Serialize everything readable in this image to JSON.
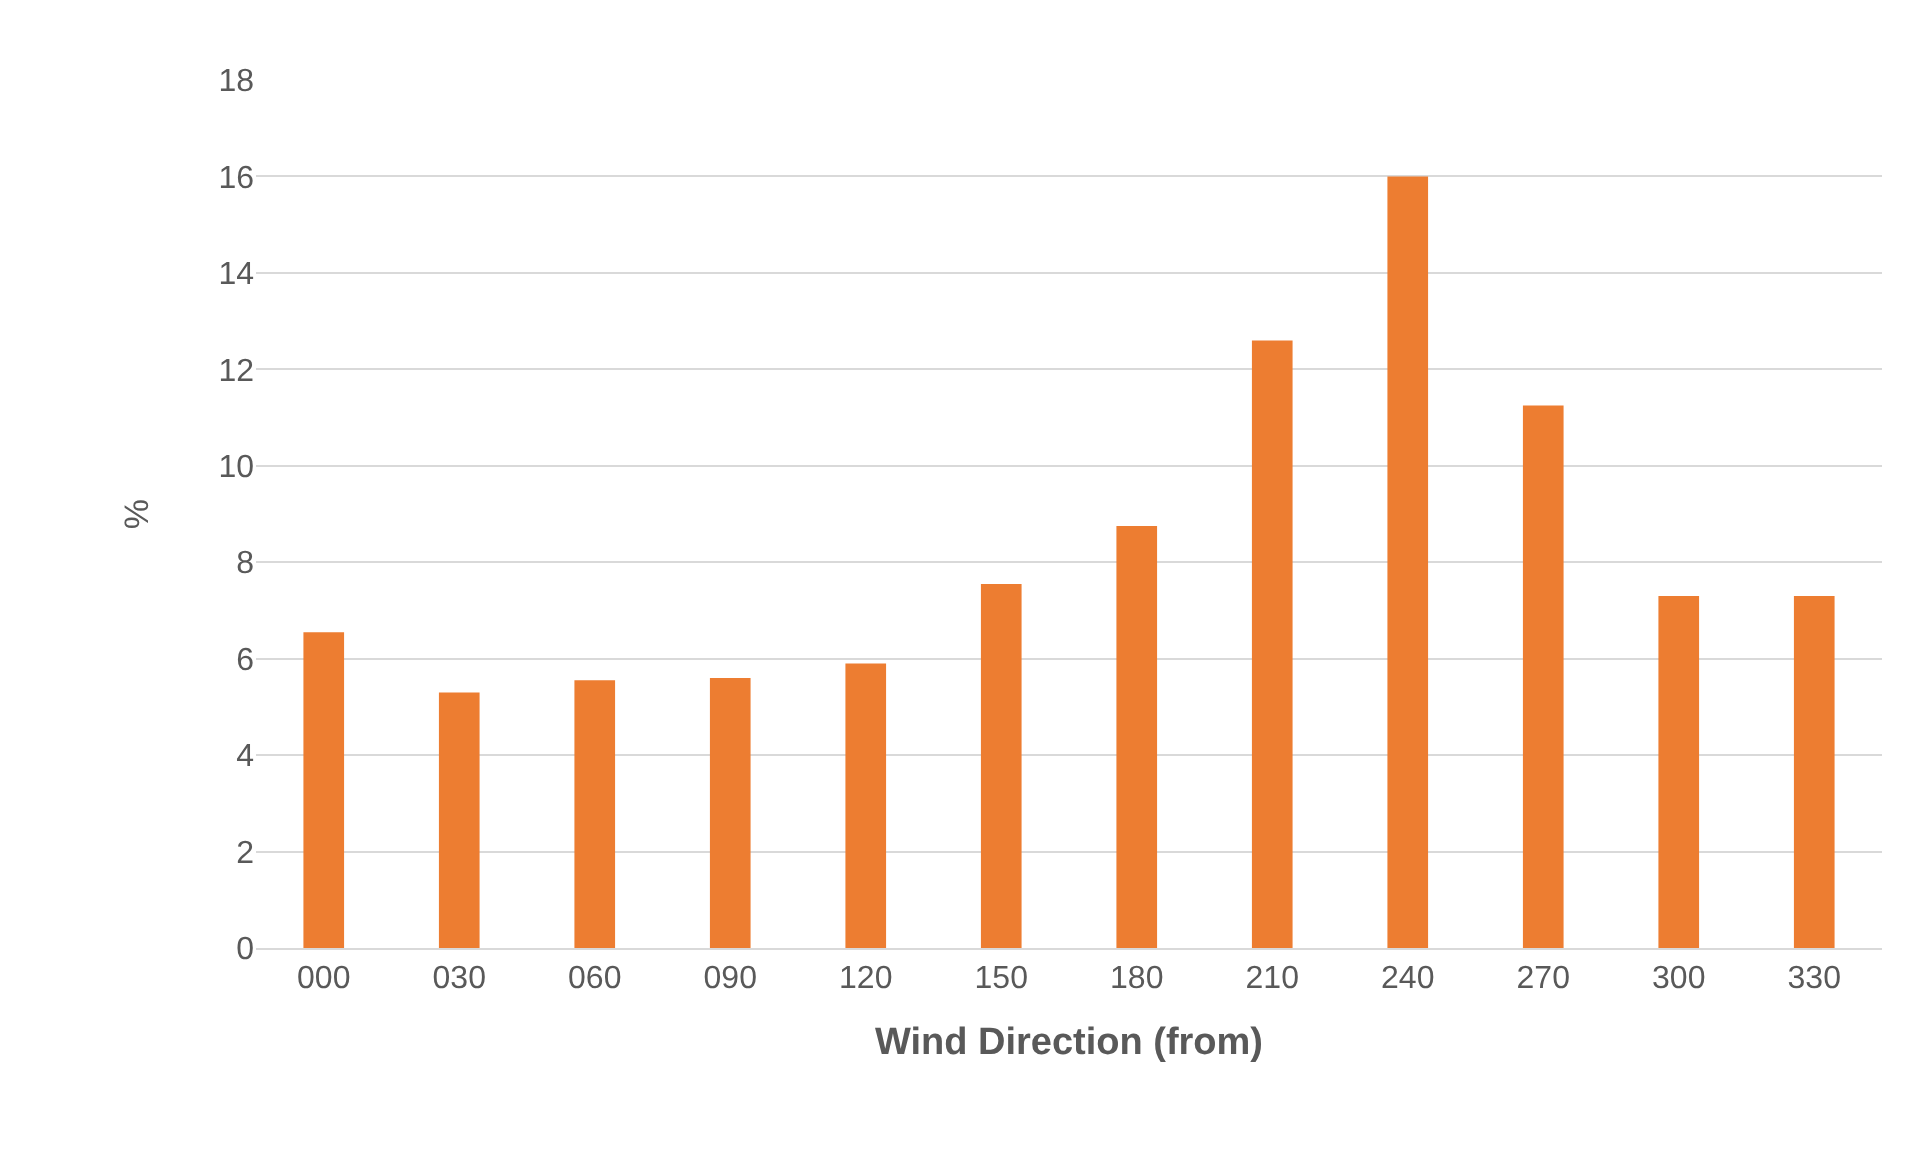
{
  "chart_data": {
    "type": "bar",
    "xlabel": "Wind Direction (from)",
    "ylabel": "%",
    "categories": [
      "000",
      "030",
      "060",
      "090",
      "120",
      "150",
      "180",
      "210",
      "240",
      "270",
      "300",
      "330"
    ],
    "values": [
      6.55,
      5.3,
      5.55,
      5.6,
      5.9,
      7.55,
      8.75,
      12.6,
      16.0,
      11.25,
      7.3,
      7.3
    ],
    "color": "#ed7d31",
    "ylim": [
      0,
      18
    ],
    "yticks": [
      0,
      2,
      4,
      6,
      8,
      10,
      12,
      14,
      16,
      18
    ],
    "grid": "y"
  }
}
